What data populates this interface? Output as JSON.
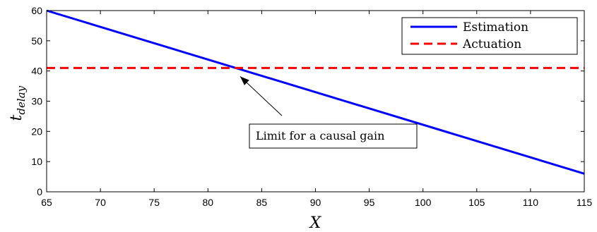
{
  "chart_data": {
    "type": "line",
    "xlabel": "X",
    "ylabel_base": "t",
    "ylabel_sub": "delay",
    "xlim": [
      65,
      115
    ],
    "ylim": [
      0,
      60
    ],
    "xticks": [
      65,
      70,
      75,
      80,
      85,
      90,
      95,
      100,
      105,
      110,
      115
    ],
    "yticks": [
      0,
      10,
      20,
      30,
      40,
      50,
      60
    ],
    "grid": false,
    "legend_position": "top-right",
    "series": [
      {
        "name": "Estimation",
        "color": "#0000ff",
        "style": "solid",
        "x": [
          65,
          115
        ],
        "y": [
          60,
          6
        ]
      },
      {
        "name": "Actuation",
        "color": "#ff0000",
        "style": "dashed",
        "x": [
          65,
          115
        ],
        "y": [
          41,
          41
        ]
      }
    ],
    "annotation": {
      "text": "Limit for a causal gain",
      "point": {
        "x": 82.6,
        "y": 41
      }
    }
  }
}
